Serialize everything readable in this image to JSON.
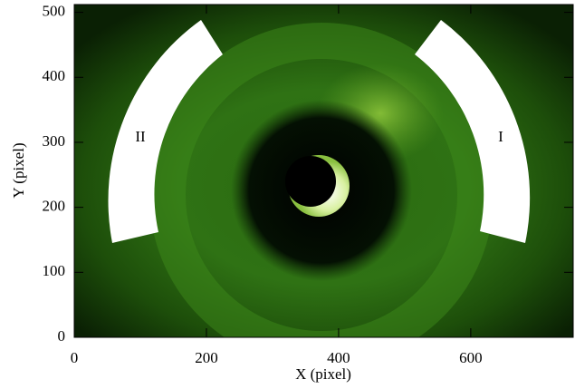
{
  "chart_data": {
    "type": "image",
    "x_label": "X (pixel)",
    "y_label": "Y (pixel)",
    "xlim": [
      0,
      755
    ],
    "ylim": [
      0,
      512
    ],
    "xticks": [
      0,
      200,
      400,
      600
    ],
    "yticks": [
      0,
      100,
      200,
      300,
      400,
      500
    ],
    "regions": [
      {
        "label": "I"
      },
      {
        "label": "II"
      }
    ]
  }
}
